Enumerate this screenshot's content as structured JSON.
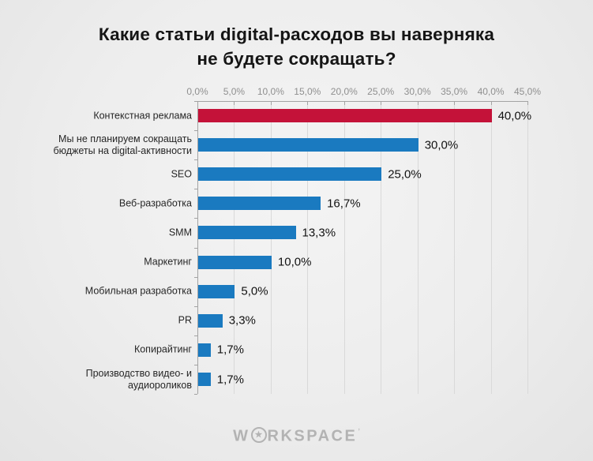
{
  "title": {
    "line1": "Какие статьи digital-расходов вы наверняка",
    "line2": "не будете сокращать?"
  },
  "footer": {
    "logo_prefix": "W",
    "logo_star": "★",
    "logo_suffix": "RKSPACE",
    "logo_tm": "ʼ"
  },
  "colors": {
    "highlight_bar": "#c41239",
    "default_bar": "#1a7ac0",
    "gridline": "#d9d9d9",
    "axis": "#a3a3a3",
    "tick_text": "#8f8f8f",
    "category_text": "#262626",
    "value_text": "#121212",
    "title_text": "#151515",
    "logo_text": "#b3b3b3",
    "background": "#ededed"
  },
  "chart_data": {
    "type": "bar",
    "orientation": "horizontal",
    "title": "Какие статьи digital-расходов вы наверняка не будете сокращать?",
    "categories": [
      "Контекстная реклама",
      "Мы не планируем сокращать бюджеты на digital-активности",
      "SEO",
      "Веб-разработка",
      "SMM",
      "Маркетинг",
      "Мобильная разработка",
      "PR",
      "Копирайтинг",
      "Производство видео- и аудиороликов"
    ],
    "values": [
      40.0,
      30.0,
      25.0,
      16.7,
      13.3,
      10.0,
      5.0,
      3.3,
      1.7,
      1.7
    ],
    "value_labels": [
      "40,0%",
      "30,0%",
      "25,0%",
      "16,7%",
      "13,3%",
      "10,0%",
      "5,0%",
      "3,3%",
      "1,7%",
      "1,7%"
    ],
    "highlight_index": 0,
    "xlabel": "",
    "ylabel": "",
    "x_axis": {
      "position": "top",
      "min": 0,
      "max": 45,
      "tick_step": 5,
      "tick_labels": [
        "0,0%",
        "5,0%",
        "10,0%",
        "15,0%",
        "20,0%",
        "25,0%",
        "30,0%",
        "35,0%",
        "40,0%",
        "45,0%"
      ]
    },
    "grid": true,
    "legend": false
  }
}
